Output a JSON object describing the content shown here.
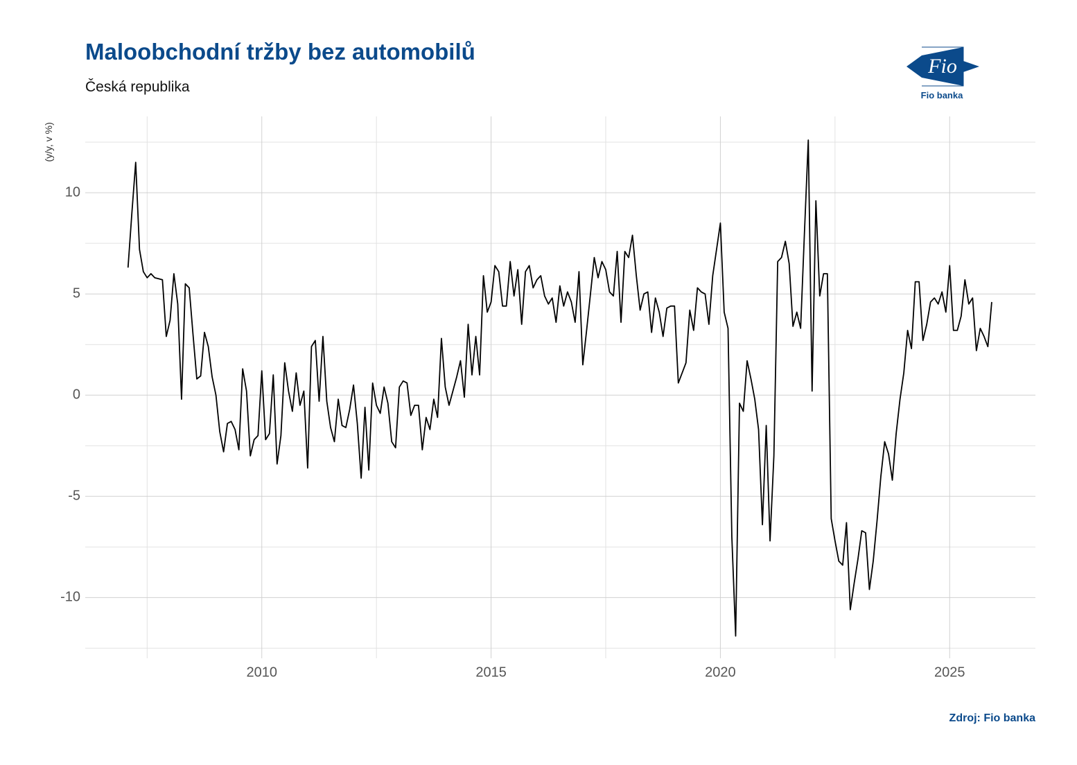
{
  "chart_data": {
    "type": "line",
    "title": "Maloobchodní tržby bez automobilů",
    "subtitle": "Česká republika",
    "y_label": "(y/y, v %)",
    "source": "Zdroj: Fio banka",
    "logo_text": "Fio",
    "logo_caption": "Fio banka",
    "xlim": [
      2006.15,
      2026.87
    ],
    "ylim": [
      -13.0,
      13.77
    ],
    "xticks": [
      2010,
      2015,
      2020,
      2025
    ],
    "yticks": [
      -10,
      -5,
      0,
      5,
      10
    ],
    "xminor": [
      2007.5,
      2012.5,
      2017.5,
      2022.5
    ],
    "yminor": [
      -12.5,
      -7.5,
      -2.5,
      2.5,
      7.5,
      12.5
    ],
    "grid": true,
    "color": "#000000",
    "x": [
      2007.083,
      2007.167,
      2007.25,
      2007.333,
      2007.417,
      2007.5,
      2007.583,
      2007.667,
      2007.75,
      2007.833,
      2007.917,
      2008,
      2008.083,
      2008.167,
      2008.25,
      2008.333,
      2008.417,
      2008.5,
      2008.583,
      2008.667,
      2008.75,
      2008.833,
      2008.917,
      2009,
      2009.083,
      2009.167,
      2009.25,
      2009.333,
      2009.417,
      2009.5,
      2009.583,
      2009.667,
      2009.75,
      2009.833,
      2009.917,
      2010,
      2010.083,
      2010.167,
      2010.25,
      2010.333,
      2010.417,
      2010.5,
      2010.583,
      2010.667,
      2010.75,
      2010.833,
      2010.917,
      2011,
      2011.083,
      2011.167,
      2011.25,
      2011.333,
      2011.417,
      2011.5,
      2011.583,
      2011.667,
      2011.75,
      2011.833,
      2011.917,
      2012,
      2012.083,
      2012.167,
      2012.25,
      2012.333,
      2012.417,
      2012.5,
      2012.583,
      2012.667,
      2012.75,
      2012.833,
      2012.917,
      2013,
      2013.083,
      2013.167,
      2013.25,
      2013.333,
      2013.417,
      2013.5,
      2013.583,
      2013.667,
      2013.75,
      2013.833,
      2013.917,
      2014,
      2014.083,
      2014.167,
      2014.25,
      2014.333,
      2014.417,
      2014.5,
      2014.583,
      2014.667,
      2014.75,
      2014.833,
      2014.917,
      2015,
      2015.083,
      2015.167,
      2015.25,
      2015.333,
      2015.417,
      2015.5,
      2015.583,
      2015.667,
      2015.75,
      2015.833,
      2015.917,
      2016,
      2016.083,
      2016.167,
      2016.25,
      2016.333,
      2016.417,
      2016.5,
      2016.583,
      2016.667,
      2016.75,
      2016.833,
      2016.917,
      2017,
      2017.083,
      2017.167,
      2017.25,
      2017.333,
      2017.417,
      2017.5,
      2017.583,
      2017.667,
      2017.75,
      2017.833,
      2017.917,
      2018,
      2018.083,
      2018.167,
      2018.25,
      2018.333,
      2018.417,
      2018.5,
      2018.583,
      2018.667,
      2018.75,
      2018.833,
      2018.917,
      2019,
      2019.083,
      2019.167,
      2019.25,
      2019.333,
      2019.417,
      2019.5,
      2019.583,
      2019.667,
      2019.75,
      2019.833,
      2019.917,
      2020,
      2020.083,
      2020.167,
      2020.25,
      2020.333,
      2020.417,
      2020.5,
      2020.583,
      2020.667,
      2020.75,
      2020.833,
      2020.917,
      2021,
      2021.083,
      2021.167,
      2021.25,
      2021.333,
      2021.417,
      2021.5,
      2021.583,
      2021.667,
      2021.75,
      2021.833,
      2021.917,
      2022,
      2022.083,
      2022.167,
      2022.25,
      2022.333,
      2022.417,
      2022.5,
      2022.583,
      2022.667,
      2022.75,
      2022.833,
      2022.917,
      2023,
      2023.083,
      2023.167,
      2023.25,
      2023.333,
      2023.417,
      2023.5,
      2023.583,
      2023.667,
      2023.75,
      2023.833,
      2023.917,
      2024,
      2024.083,
      2024.167,
      2024.25,
      2024.333,
      2024.417,
      2024.5,
      2024.583,
      2024.667,
      2024.75,
      2024.833,
      2024.917,
      2025,
      2025.083,
      2025.167,
      2025.25,
      2025.333,
      2025.417,
      2025.5,
      2025.583,
      2025.667,
      2025.75,
      2025.833,
      2025.917
    ],
    "values": [
      6.3,
      9.0,
      11.5,
      7.2,
      6.1,
      5.8,
      6.0,
      5.8,
      5.75,
      5.7,
      2.9,
      3.7,
      6.0,
      4.5,
      -0.2,
      5.5,
      5.3,
      3.0,
      0.8,
      0.95,
      3.1,
      2.4,
      0.9,
      0.0,
      -1.8,
      -2.8,
      -1.4,
      -1.3,
      -1.7,
      -2.7,
      1.3,
      0.2,
      -3.0,
      -2.2,
      -2.0,
      1.2,
      -2.2,
      -1.9,
      1.0,
      -3.4,
      -2.0,
      1.6,
      0.2,
      -0.8,
      1.1,
      -0.5,
      0.2,
      -3.6,
      2.4,
      2.7,
      -0.3,
      2.9,
      -0.3,
      -1.6,
      -2.3,
      -0.2,
      -1.5,
      -1.6,
      -0.7,
      0.5,
      -1.4,
      -4.1,
      -0.6,
      -3.7,
      0.6,
      -0.5,
      -0.9,
      0.4,
      -0.4,
      -2.3,
      -2.6,
      0.4,
      0.7,
      0.6,
      -1.0,
      -0.5,
      -0.5,
      -2.7,
      -1.1,
      -1.7,
      -0.2,
      -1.1,
      2.8,
      0.4,
      -0.5,
      0.2,
      0.9,
      1.7,
      -0.1,
      3.5,
      1.0,
      2.9,
      1.0,
      5.9,
      4.1,
      4.6,
      6.4,
      6.1,
      4.4,
      4.4,
      6.6,
      4.9,
      6.2,
      3.5,
      6.1,
      6.4,
      5.3,
      5.7,
      5.9,
      4.9,
      4.5,
      4.8,
      3.6,
      5.4,
      4.4,
      5.1,
      4.6,
      3.6,
      6.1,
      1.5,
      3.2,
      5.0,
      6.8,
      5.8,
      6.6,
      6.2,
      5.1,
      4.9,
      7.1,
      3.6,
      7.1,
      6.8,
      7.9,
      5.9,
      4.2,
      5.0,
      5.1,
      3.1,
      4.8,
      4.1,
      2.9,
      4.3,
      4.4,
      4.4,
      0.6,
      1.1,
      1.6,
      4.2,
      3.2,
      5.3,
      5.1,
      5.0,
      3.5,
      5.9,
      7.2,
      8.5,
      4.1,
      3.3,
      -7.0,
      -11.9,
      -0.4,
      -0.8,
      1.7,
      0.8,
      -0.2,
      -1.7,
      -6.4,
      -1.5,
      -7.2,
      -3.0,
      6.6,
      6.8,
      7.6,
      6.5,
      3.4,
      4.1,
      3.3,
      8.0,
      12.6,
      0.2,
      9.6,
      4.9,
      6.0,
      6.0,
      -6.1,
      -7.2,
      -8.2,
      -8.4,
      -6.3,
      -10.6,
      -9.3,
      -8.1,
      -6.7,
      -6.8,
      -9.6,
      -8.2,
      -6.2,
      -4.0,
      -2.3,
      -2.9,
      -4.2,
      -1.9,
      -0.2,
      1.1,
      3.2,
      2.3,
      5.6,
      5.6,
      2.7,
      3.5,
      4.6,
      4.8,
      4.5,
      5.1,
      4.1,
      6.4,
      3.2,
      3.2,
      3.9,
      5.7,
      4.5,
      4.8,
      2.2,
      3.3,
      2.9,
      2.4,
      4.6
    ]
  }
}
